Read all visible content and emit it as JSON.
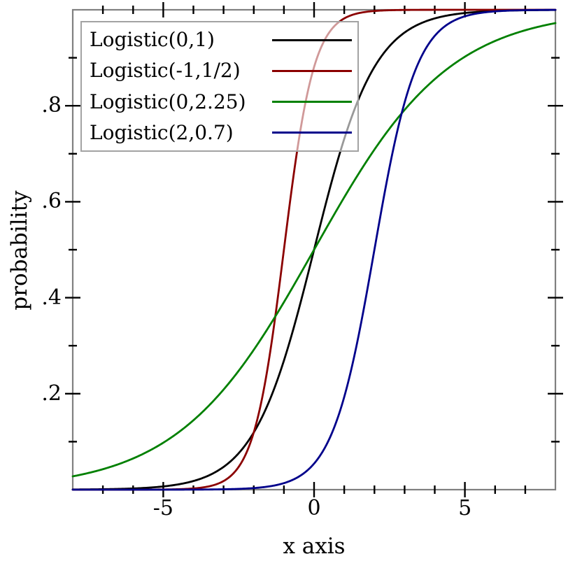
{
  "chart_data": {
    "type": "line",
    "title": "",
    "xlabel": "x axis",
    "ylabel": "probability",
    "xlim": [
      -8,
      8
    ],
    "ylim": [
      0,
      1
    ],
    "grid": false,
    "legend_position": "top-left",
    "x_ticks_major": [
      -5,
      0,
      5
    ],
    "x_tick_labels": [
      "-5",
      "0",
      "5"
    ],
    "x_ticks_minor": [
      -7,
      -6,
      -4,
      -3,
      -2,
      -1,
      1,
      2,
      3,
      4,
      6,
      7
    ],
    "y_ticks_major": [
      0.2,
      0.4,
      0.6,
      0.8
    ],
    "y_tick_labels": [
      ".2",
      ".4",
      ".6",
      ".8"
    ],
    "y_ticks_minor": [
      0.1,
      0.3,
      0.5,
      0.7,
      0.9
    ],
    "function": "y = 1 / (1 + exp(-(x - mu) / s))  (logistic CDF)",
    "series": [
      {
        "name": "Logistic(0,1)",
        "mu": 0,
        "s": 1,
        "color": "#000000"
      },
      {
        "name": "Logistic(-1,1/2)",
        "mu": -1,
        "s": 0.5,
        "color": "#8b0000"
      },
      {
        "name": "Logistic(0,2.25)",
        "mu": 0,
        "s": 2.25,
        "color": "#008000"
      },
      {
        "name": "Logistic(2,0.7)",
        "mu": 2,
        "s": 0.7,
        "color": "#00008b"
      }
    ],
    "sample_points": {
      "x": [
        -8,
        -7,
        -6,
        -5,
        -4,
        -3,
        -2,
        -1,
        0,
        1,
        2,
        3,
        4,
        5,
        6,
        7,
        8
      ],
      "Logistic(0,1)": [
        0.0,
        0.001,
        0.002,
        0.007,
        0.018,
        0.047,
        0.119,
        0.269,
        0.5,
        0.731,
        0.881,
        0.953,
        0.982,
        0.993,
        0.998,
        0.999,
        1.0
      ],
      "Logistic(-1,1/2)": [
        0.0,
        0.0,
        0.0,
        0.0,
        0.002,
        0.018,
        0.119,
        0.5,
        0.881,
        0.982,
        0.998,
        1.0,
        1.0,
        1.0,
        1.0,
        1.0,
        1.0
      ],
      "Logistic(0,2.25)": [
        0.028,
        0.043,
        0.065,
        0.098,
        0.145,
        0.209,
        0.289,
        0.391,
        0.5,
        0.609,
        0.711,
        0.791,
        0.855,
        0.902,
        0.935,
        0.957,
        0.972
      ],
      "Logistic(2,0.7)": [
        0.0,
        0.0,
        0.0,
        0.0,
        0.0,
        0.001,
        0.003,
        0.014,
        0.054,
        0.193,
        0.5,
        0.807,
        0.946,
        0.986,
        0.997,
        0.999,
        1.0
      ]
    },
    "colors": {
      "axis_border": "#808080",
      "ticks": "#000000",
      "legend_border": "#a3a3a3",
      "legend_bg": "rgba(255,255,255,0.6)"
    }
  }
}
